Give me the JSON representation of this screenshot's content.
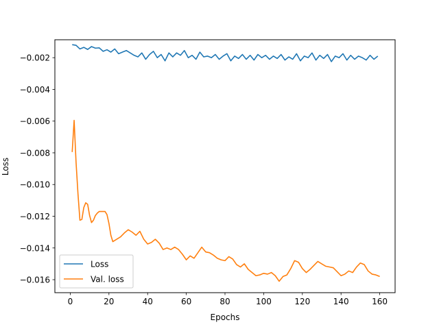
{
  "chart_data": {
    "type": "line",
    "title": "",
    "xlabel": "Epochs",
    "ylabel": "Loss",
    "xlim": [
      -7.95,
      167.95
    ],
    "ylim": [
      -0.01682,
      -0.00087
    ],
    "xticks": [
      0,
      20,
      40,
      60,
      80,
      100,
      120,
      140,
      160
    ],
    "xtick_labels": [
      "0",
      "20",
      "40",
      "60",
      "80",
      "100",
      "120",
      "140",
      "160"
    ],
    "yticks": [
      -0.016,
      -0.014,
      -0.012,
      -0.01,
      -0.008,
      -0.006,
      -0.004,
      -0.002
    ],
    "ytick_labels": [
      "−0.016",
      "−0.014",
      "−0.012",
      "−0.010",
      "−0.008",
      "−0.006",
      "−0.004",
      "−0.002"
    ],
    "grid": false,
    "legend_position": "lower-left",
    "series": [
      {
        "name": "Loss",
        "color": "#1f77b4",
        "x": [
          1,
          3,
          5,
          7,
          9,
          11,
          13,
          15,
          17,
          19,
          21,
          23,
          25,
          27,
          29,
          31,
          33,
          35,
          37,
          39,
          41,
          43,
          45,
          47,
          49,
          51,
          53,
          55,
          57,
          59,
          61,
          63,
          65,
          67,
          69,
          71,
          73,
          75,
          77,
          79,
          81,
          83,
          85,
          87,
          89,
          91,
          93,
          95,
          97,
          99,
          101,
          103,
          105,
          107,
          109,
          111,
          113,
          115,
          117,
          119,
          121,
          123,
          125,
          127,
          129,
          131,
          133,
          135,
          137,
          139,
          141,
          143,
          145,
          147,
          149,
          151,
          153,
          155,
          157,
          159
        ],
        "values": [
          -0.00118,
          -0.00122,
          -0.00145,
          -0.00135,
          -0.00148,
          -0.0013,
          -0.0014,
          -0.00138,
          -0.0016,
          -0.0015,
          -0.00165,
          -0.00145,
          -0.00175,
          -0.00165,
          -0.00155,
          -0.0017,
          -0.00185,
          -0.00195,
          -0.0017,
          -0.0021,
          -0.0018,
          -0.0016,
          -0.002,
          -0.0018,
          -0.0022,
          -0.0017,
          -0.00195,
          -0.0017,
          -0.00185,
          -0.00155,
          -0.002,
          -0.00185,
          -0.0021,
          -0.00165,
          -0.00195,
          -0.0019,
          -0.002,
          -0.0018,
          -0.0021,
          -0.0019,
          -0.00175,
          -0.0022,
          -0.0019,
          -0.00205,
          -0.0018,
          -0.0021,
          -0.00185,
          -0.00215,
          -0.0018,
          -0.002,
          -0.00185,
          -0.0021,
          -0.0019,
          -0.00205,
          -0.0018,
          -0.00215,
          -0.00195,
          -0.0021,
          -0.00175,
          -0.0022,
          -0.0019,
          -0.002,
          -0.0017,
          -0.00215,
          -0.00185,
          -0.00205,
          -0.0018,
          -0.00225,
          -0.0019,
          -0.002,
          -0.00175,
          -0.00215,
          -0.00185,
          -0.0021,
          -0.0019,
          -0.002,
          -0.00215,
          -0.00185,
          -0.0021,
          -0.0019
        ]
      },
      {
        "name": "Val. loss",
        "color": "#ff7f0e",
        "x": [
          1,
          2,
          3,
          4,
          5,
          6,
          7,
          8,
          9,
          10,
          11,
          12,
          13,
          14,
          15,
          16,
          17,
          18,
          19,
          20,
          21,
          22,
          24,
          26,
          28,
          30,
          32,
          34,
          36,
          38,
          40,
          42,
          44,
          46,
          48,
          50,
          52,
          54,
          56,
          58,
          60,
          62,
          64,
          66,
          68,
          70,
          72,
          74,
          76,
          78,
          80,
          82,
          84,
          86,
          88,
          90,
          92,
          94,
          96,
          98,
          100,
          102,
          104,
          106,
          108,
          110,
          112,
          114,
          116,
          118,
          120,
          122,
          124,
          126,
          128,
          130,
          132,
          134,
          136,
          138,
          140,
          142,
          144,
          146,
          148,
          150,
          152,
          154,
          156,
          158,
          160
        ],
        "values": [
          -0.00795,
          -0.00595,
          -0.0086,
          -0.0106,
          -0.01225,
          -0.0122,
          -0.01145,
          -0.01115,
          -0.01125,
          -0.01195,
          -0.0124,
          -0.01225,
          -0.01195,
          -0.0118,
          -0.0117,
          -0.0117,
          -0.0117,
          -0.0117,
          -0.0119,
          -0.01245,
          -0.0132,
          -0.0136,
          -0.01345,
          -0.0133,
          -0.01305,
          -0.01285,
          -0.013,
          -0.0132,
          -0.01295,
          -0.01345,
          -0.01375,
          -0.01365,
          -0.01345,
          -0.0137,
          -0.0141,
          -0.014,
          -0.0141,
          -0.01395,
          -0.0141,
          -0.0144,
          -0.01475,
          -0.0145,
          -0.01465,
          -0.0143,
          -0.01395,
          -0.01425,
          -0.0143,
          -0.01445,
          -0.01465,
          -0.01475,
          -0.0148,
          -0.01455,
          -0.0147,
          -0.01505,
          -0.0152,
          -0.015,
          -0.01535,
          -0.01555,
          -0.01575,
          -0.0157,
          -0.0156,
          -0.01565,
          -0.01555,
          -0.01575,
          -0.0161,
          -0.0158,
          -0.0157,
          -0.0153,
          -0.0148,
          -0.0149,
          -0.0153,
          -0.01555,
          -0.01535,
          -0.0151,
          -0.01485,
          -0.015,
          -0.01515,
          -0.0152,
          -0.01525,
          -0.0155,
          -0.01575,
          -0.01565,
          -0.01545,
          -0.01555,
          -0.0152,
          -0.01495,
          -0.01505,
          -0.01545,
          -0.01565,
          -0.0157,
          -0.0158
        ]
      }
    ]
  }
}
